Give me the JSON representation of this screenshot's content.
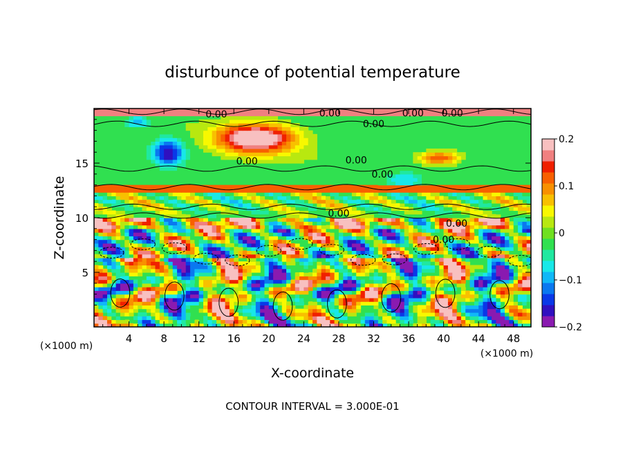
{
  "chart_data": {
    "type": "heatmap",
    "title": "disturbunce of potential temperature",
    "xlabel": "X-coordinate",
    "ylabel": "Z-coordinate",
    "x_unit": "(×1000 m)",
    "z_unit": "(×1000 m)",
    "xlim": [
      0,
      50
    ],
    "ylim": [
      0,
      20
    ],
    "x_ticks": [
      4,
      8,
      12,
      16,
      20,
      24,
      28,
      32,
      36,
      40,
      44,
      48
    ],
    "y_ticks": [
      5,
      10,
      15
    ],
    "colorbar": {
      "range": [
        -0.2,
        0.2
      ],
      "tick_values": [
        0.2,
        0.1,
        0,
        -0.1,
        -0.2
      ],
      "tick_labels": [
        "0.2",
        "0.1",
        "0",
        "−0.1",
        "−0.2"
      ],
      "colors": [
        "#8a1ab0",
        "#3010c0",
        "#0a38e8",
        "#0a78f0",
        "#10b8f8",
        "#18e8e8",
        "#20e8a0",
        "#30e050",
        "#70e020",
        "#b8e810",
        "#f8f800",
        "#f8c000",
        "#f89000",
        "#f86000",
        "#f02000",
        "#f08080",
        "#f8c0c0"
      ]
    },
    "contour_labels": [
      {
        "text": "0.00",
        "x": 14.0,
        "z": 19.5
      },
      {
        "text": "0.00",
        "x": 27.0,
        "z": 19.6
      },
      {
        "text": "0.00",
        "x": 32.0,
        "z": 18.6
      },
      {
        "text": "0.00",
        "x": 36.5,
        "z": 19.6
      },
      {
        "text": "0.00",
        "x": 41.0,
        "z": 19.6
      },
      {
        "text": "0.00",
        "x": 17.5,
        "z": 15.2
      },
      {
        "text": "0.00",
        "x": 30.0,
        "z": 15.3
      },
      {
        "text": "0.00",
        "x": 33.0,
        "z": 14.0
      },
      {
        "text": "0.00",
        "x": 28.0,
        "z": 10.4
      },
      {
        "text": "0.00",
        "x": 41.5,
        "z": 9.5
      },
      {
        "text": "0.00",
        "x": 40.0,
        "z": 8.0
      }
    ],
    "footer": "CONTOUR INTERVAL = 3.000E-01"
  }
}
